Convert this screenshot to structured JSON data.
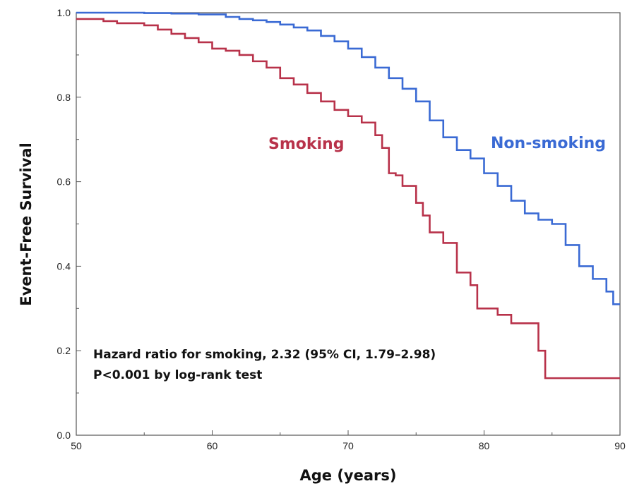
{
  "chart_data": {
    "type": "line",
    "step": true,
    "xlabel": "Age (years)",
    "ylabel": "Event-Free Survival",
    "xlim": [
      50,
      90
    ],
    "ylim": [
      0.0,
      1.0
    ],
    "xticks": [
      "50",
      "60",
      "70",
      "80",
      "90"
    ],
    "yticks": [
      "0.0",
      "0.2",
      "0.4",
      "0.6",
      "0.8",
      "1.0"
    ],
    "grid": false,
    "annotations": [
      "Hazard ratio for smoking, 2.32 (95% CI, 1.79–2.98)",
      "P<0.001 by log-rank test"
    ],
    "series": [
      {
        "name": "Non-smoking",
        "color": "#3a6ad4",
        "x": [
          50,
          53,
          55,
          57,
          59,
          61,
          62,
          63,
          64,
          65,
          66,
          67,
          68,
          69,
          70,
          71,
          72,
          73,
          74,
          75,
          76,
          77,
          78,
          79,
          80,
          81,
          82,
          83,
          84,
          85,
          86,
          87,
          88,
          89,
          89.5,
          90
        ],
        "values": [
          1.0,
          1.0,
          0.999,
          0.998,
          0.996,
          0.99,
          0.985,
          0.982,
          0.978,
          0.972,
          0.965,
          0.958,
          0.945,
          0.932,
          0.915,
          0.895,
          0.87,
          0.845,
          0.82,
          0.79,
          0.745,
          0.705,
          0.675,
          0.655,
          0.62,
          0.59,
          0.555,
          0.525,
          0.51,
          0.5,
          0.45,
          0.4,
          0.37,
          0.34,
          0.31,
          0.31
        ]
      },
      {
        "name": "Smoking",
        "color": "#b8324a",
        "x": [
          50,
          52,
          53,
          55,
          56,
          57,
          58,
          59,
          60,
          61,
          62,
          63,
          64,
          65,
          66,
          67,
          68,
          69,
          70,
          71,
          72,
          72.5,
          73,
          73.5,
          74,
          75,
          75.5,
          76,
          77,
          78,
          79,
          79.5,
          80,
          81,
          82,
          84,
          84.5,
          90
        ],
        "values": [
          0.985,
          0.98,
          0.975,
          0.97,
          0.96,
          0.95,
          0.94,
          0.93,
          0.915,
          0.91,
          0.9,
          0.885,
          0.87,
          0.845,
          0.83,
          0.81,
          0.79,
          0.77,
          0.755,
          0.74,
          0.71,
          0.68,
          0.62,
          0.615,
          0.59,
          0.55,
          0.52,
          0.48,
          0.455,
          0.385,
          0.355,
          0.3,
          0.3,
          0.285,
          0.265,
          0.2,
          0.135,
          0.135
        ]
      }
    ]
  }
}
